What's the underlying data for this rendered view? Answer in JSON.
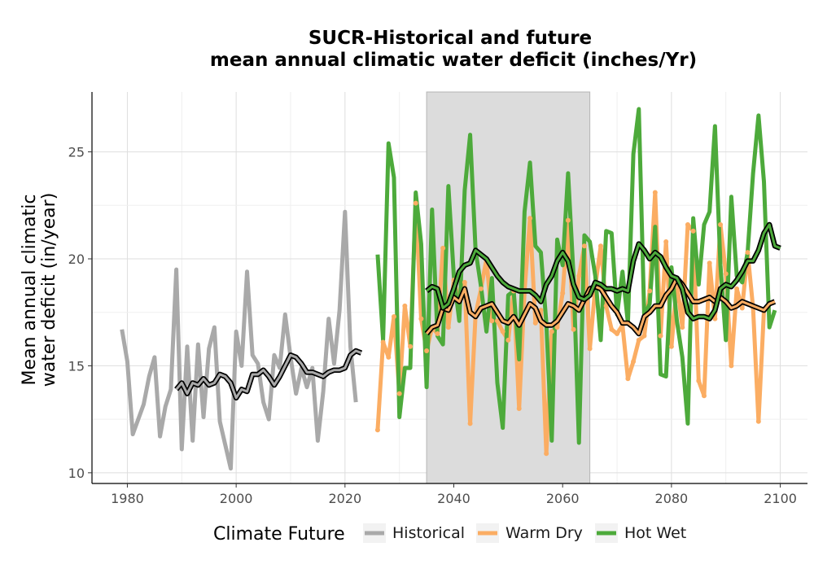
{
  "chart_data": {
    "type": "line",
    "title_lines": [
      "SUCR-Historical and future",
      "mean annual climatic water deficit (inches/Yr)"
    ],
    "xlabel": "",
    "ylabel_lines": [
      "Mean annual climatic",
      "water deficit (in/year)"
    ],
    "xlim": [
      1973.5,
      2105
    ],
    "ylim": [
      9.5,
      27.8
    ],
    "x_ticks": [
      1980,
      2000,
      2020,
      2040,
      2060,
      2080,
      2100
    ],
    "y_ticks": [
      10,
      15,
      20,
      25
    ],
    "grid": true,
    "legend_position": "bottom",
    "shaded_period": [
      2035,
      2065
    ],
    "legend": {
      "title": "Climate Future",
      "entries": [
        "Historical",
        "Warm Dry",
        "Hot Wet"
      ]
    },
    "colors": {
      "Historical": "#a9a9a9",
      "Warm Dry": "#fbad63",
      "Hot Wet": "#4daa3b",
      "smooth_outline": "#000000",
      "shade": "#dcdcdc",
      "grid": "#dedede"
    },
    "series": [
      {
        "name": "Historical",
        "x_start": 1979,
        "values": [
          16.7,
          15.2,
          11.8,
          12.5,
          13.2,
          14.5,
          15.4,
          11.7,
          13.1,
          13.9,
          19.5,
          11.1,
          15.9,
          11.5,
          16.0,
          12.6,
          15.8,
          16.8,
          12.4,
          11.3,
          10.2,
          16.6,
          15.0,
          19.4,
          15.5,
          15.1,
          13.3,
          12.5,
          15.5,
          14.9,
          17.4,
          15.4,
          13.7,
          14.9,
          14.0,
          14.9,
          11.5,
          13.8,
          17.2,
          15.1,
          17.6,
          22.2,
          15.9,
          13.3
        ],
        "smooth": {
          "x_start": 1989,
          "values": [
            13.9,
            14.2,
            13.7,
            14.2,
            14.1,
            14.4,
            14.1,
            14.2,
            14.6,
            14.5,
            14.2,
            13.5,
            13.9,
            13.8,
            14.6,
            14.6,
            14.8,
            14.5,
            14.1,
            14.5,
            15.0,
            15.5,
            15.4,
            15.1,
            14.7,
            14.7,
            14.6,
            14.5,
            14.7,
            14.8,
            14.8,
            14.9,
            15.5,
            15.7,
            15.6
          ]
        }
      },
      {
        "name": "Warm Dry",
        "x_start": 2026,
        "values": [
          12.0,
          16.1,
          15.4,
          17.3,
          13.7,
          17.8,
          15.9,
          22.6,
          17.2,
          15.7,
          16.8,
          16.5,
          20.5,
          16.8,
          19.0,
          18.0,
          18.9,
          12.3,
          17.4,
          18.6,
          20.0,
          17.1,
          17.1,
          16.6,
          16.2,
          18.5,
          13.0,
          18.5,
          21.9,
          17.0,
          17.6,
          10.9,
          16.6,
          16.8,
          18.4,
          21.8,
          16.7,
          19.2,
          20.6,
          15.8,
          18.7,
          20.6,
          17.8,
          16.7,
          16.5,
          16.9,
          14.4,
          15.2,
          16.2,
          16.4,
          18.5,
          23.1,
          16.4,
          20.8,
          15.9,
          18.9,
          16.8,
          21.6,
          21.3,
          14.3,
          13.6,
          19.8,
          17.2,
          21.6,
          19.3,
          15.0,
          18.6,
          17.7,
          20.3,
          17.7,
          12.4,
          17.6
        ],
        "smooth": {
          "x_start": 2035,
          "values": [
            16.5,
            16.8,
            16.9,
            17.7,
            17.6,
            18.2,
            18.0,
            18.6,
            17.5,
            17.3,
            17.7,
            17.8,
            17.9,
            17.5,
            17.1,
            17.0,
            17.3,
            16.9,
            17.4,
            17.9,
            17.7,
            17.1,
            16.9,
            16.9,
            17.1,
            17.5,
            17.9,
            17.8,
            17.6,
            18.1,
            18.6,
            18.7,
            18.6,
            18.2,
            17.8,
            17.5,
            17.0,
            17.0,
            16.8,
            16.5,
            17.3,
            17.5,
            17.8,
            17.8,
            18.3,
            18.6,
            19.1,
            18.8,
            18.4,
            18.0,
            18.0,
            18.1,
            18.2,
            18.0,
            18.2,
            18.0,
            17.7,
            17.8,
            18.0,
            17.9,
            17.8,
            17.7,
            17.6,
            17.9,
            18.0
          ]
        }
      },
      {
        "name": "Hot Wet",
        "x_start": 2026,
        "values": [
          20.2,
          16.2,
          25.4,
          23.8,
          12.6,
          14.9,
          14.9,
          23.1,
          20.7,
          14.0,
          22.3,
          16.4,
          16.0,
          23.4,
          19.2,
          17.1,
          23.2,
          25.8,
          20.4,
          18.7,
          16.6,
          19.1,
          14.2,
          12.1,
          18.3,
          18.5,
          15.3,
          22.2,
          24.5,
          20.6,
          20.3,
          17.0,
          11.5,
          20.9,
          19.7,
          24.0,
          19.2,
          11.4,
          21.1,
          20.8,
          19.2,
          16.2,
          21.3,
          21.2,
          17.4,
          19.4,
          17.0,
          24.9,
          27.0,
          17.3,
          17.9,
          21.5,
          14.6,
          14.5,
          19.6,
          17.1,
          15.4,
          12.3,
          21.9,
          18.8,
          21.6,
          22.2,
          26.2,
          19.7,
          16.2,
          22.9,
          19.2,
          18.9,
          20.3,
          24.0,
          26.7,
          23.6,
          16.8,
          17.6
        ],
        "smooth": {
          "x_start": 2035,
          "values": [
            18.5,
            18.7,
            18.6,
            17.7,
            17.9,
            18.6,
            19.4,
            19.7,
            19.8,
            20.4,
            20.2,
            20.0,
            19.6,
            19.2,
            18.9,
            18.7,
            18.6,
            18.5,
            18.5,
            18.5,
            18.3,
            18.0,
            18.8,
            19.2,
            19.9,
            20.3,
            19.9,
            18.8,
            18.2,
            18.1,
            18.3,
            18.9,
            18.8,
            18.6,
            18.6,
            18.5,
            18.6,
            18.5,
            19.9,
            20.7,
            20.4,
            20.0,
            20.3,
            20.1,
            19.6,
            19.2,
            19.1,
            18.6,
            17.5,
            17.2,
            17.3,
            17.3,
            17.2,
            17.6,
            18.6,
            18.8,
            18.7,
            19.0,
            19.4,
            19.9,
            19.9,
            20.4,
            21.2,
            21.6,
            20.6,
            20.5
          ]
        }
      }
    ]
  }
}
